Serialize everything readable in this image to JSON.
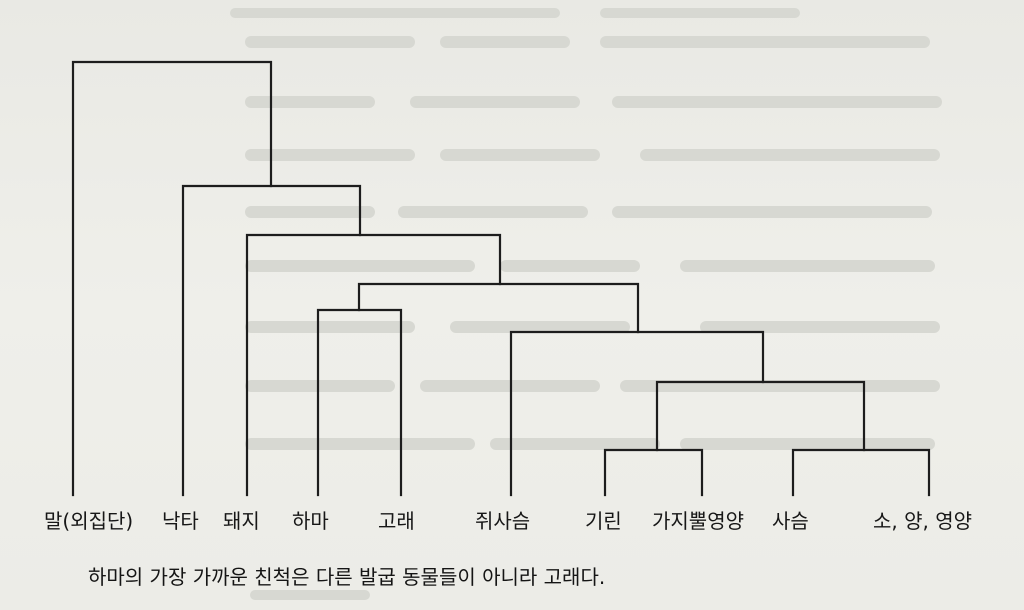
{
  "diagram": {
    "type": "cladogram",
    "taxa": [
      "말(외집단)",
      "낙타",
      "돼지",
      "하마",
      "고래",
      "쥐사슴",
      "기린",
      "가지뿔영양",
      "사슴",
      "소, 양, 영양"
    ],
    "caption": "하마의 가장 가까운 친척은 다른 발굽 동물들이 아니라 고래다."
  }
}
